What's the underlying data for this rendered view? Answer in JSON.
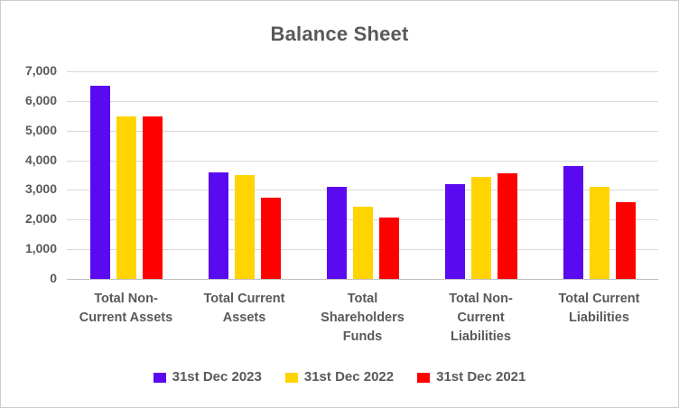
{
  "chart": {
    "background": "#FFFFFF",
    "border_color": "#CBCBCB"
  },
  "chart_data": {
    "type": "bar",
    "title": "Balance Sheet",
    "xlabel": "",
    "ylabel": "",
    "categories": [
      "Total Non-Current Assets",
      "Total Current Assets",
      "Total Shareholders Funds",
      "Total Non-Current Liabilities",
      "Total Current Liabilities"
    ],
    "category_label_lines": [
      [
        "Total Non-",
        "Current Assets"
      ],
      [
        "Total Current",
        "Assets"
      ],
      [
        "Total",
        "Shareholders",
        "Funds"
      ],
      [
        "Total Non-",
        "Current",
        "Liabilities"
      ],
      [
        "Total Current",
        "Liabilities"
      ]
    ],
    "series": [
      {
        "name": "31st Dec 2023",
        "color": "#5A0AF0",
        "values": [
          6500,
          3600,
          3100,
          3200,
          3800
        ]
      },
      {
        "name": "31st Dec 2022",
        "color": "#FFD400",
        "values": [
          5480,
          3500,
          2450,
          3450,
          3100
        ]
      },
      {
        "name": "31st Dec 2021",
        "color": "#FF0000",
        "values": [
          5470,
          2750,
          2080,
          3550,
          2600
        ]
      }
    ],
    "ylim": [
      0,
      7000
    ],
    "ytick_step": 1000,
    "ytick_labels": [
      "0",
      "1,000",
      "2,000",
      "3,000",
      "4,000",
      "5,000",
      "6,000",
      "7,000"
    ],
    "grid": true,
    "legend_position": "bottom",
    "text_color": "#595959",
    "gridline_color": "#D9D9D9",
    "axis_line_color": "#BFBFBF"
  }
}
